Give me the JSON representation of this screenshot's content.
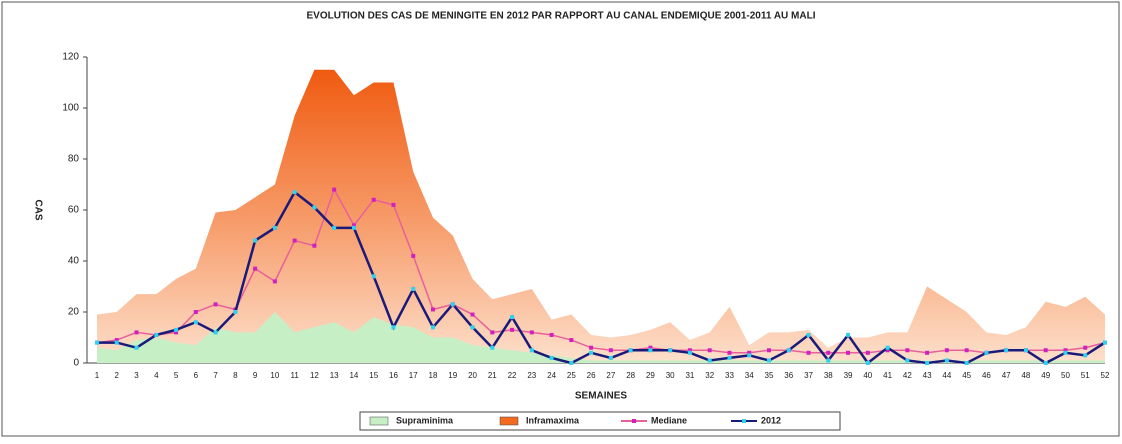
{
  "chart_data": {
    "type": "area-line",
    "title": "EVOLUTION DES CAS DE MENINGITE EN 2012 PAR RAPPORT AU CANAL ENDEMIQUE 2001-2011 AU MALI",
    "y_label": "CAS",
    "x_label": "SEMAINES",
    "categories": [
      "1",
      "2",
      "3",
      "4",
      "5",
      "6",
      "7",
      "8",
      "9",
      "10",
      "11",
      "12",
      "13",
      "14",
      "15",
      "16",
      "17",
      "18",
      "19",
      "20",
      "21",
      "22",
      "23",
      "24",
      "25",
      "26",
      "27",
      "28",
      "29",
      "30",
      "31",
      "32",
      "33",
      "34",
      "35",
      "36",
      "37",
      "38",
      "39",
      "40",
      "41",
      "42",
      "43",
      "44",
      "45",
      "46",
      "47",
      "48",
      "49",
      "50",
      "51",
      "52"
    ],
    "ylim": [
      0,
      120
    ],
    "yticks": [
      0,
      20,
      40,
      60,
      80,
      100,
      120
    ],
    "legend": "bottom",
    "series": [
      {
        "name": "Supraminima",
        "kind": "area",
        "color": "#c6efc6",
        "values": [
          6,
          5,
          9,
          10,
          8,
          7,
          14,
          12,
          12,
          20,
          12,
          14,
          16,
          12,
          18,
          15,
          14,
          10,
          10,
          7,
          6,
          5,
          4,
          3,
          2,
          1,
          1,
          1,
          1,
          1,
          1,
          1,
          1,
          1,
          1,
          1,
          1,
          1,
          1,
          1,
          1,
          1,
          1,
          1,
          1,
          1,
          1,
          1,
          1,
          1,
          1,
          1
        ]
      },
      {
        "name": "Inframaxima",
        "kind": "area",
        "color": "#f26b21",
        "values": [
          19,
          20,
          27,
          27,
          33,
          37,
          59,
          60,
          65,
          70,
          97,
          115,
          115,
          105,
          110,
          110,
          75,
          57,
          50,
          33,
          25,
          27,
          29,
          17,
          19,
          11,
          10,
          11,
          13,
          16,
          9,
          12,
          22,
          7,
          12,
          12,
          13,
          6,
          10,
          10,
          12,
          12,
          30,
          25,
          20,
          12,
          11,
          14,
          24,
          22,
          26,
          19
        ]
      },
      {
        "name": "Mediane",
        "kind": "line",
        "color": "#e8609a",
        "marker": "#d020c0",
        "values": [
          8,
          9,
          12,
          11,
          12,
          20,
          23,
          21,
          37,
          32,
          48,
          46,
          68,
          54,
          64,
          62,
          42,
          21,
          23,
          19,
          12,
          13,
          12,
          11,
          9,
          6,
          5,
          5,
          6,
          5,
          5,
          5,
          4,
          4,
          5,
          5,
          4,
          4,
          4,
          4,
          5,
          5,
          4,
          5,
          5,
          4,
          5,
          5,
          5,
          5,
          6,
          8
        ]
      },
      {
        "name": "2012",
        "kind": "line",
        "color": "#1a1a7a",
        "marker": "#30d0f0",
        "values": [
          8,
          8,
          6,
          11,
          13,
          16,
          12,
          20,
          48,
          53,
          67,
          61,
          53,
          53,
          34,
          14,
          29,
          14,
          23,
          14,
          6,
          18,
          5,
          2,
          0,
          4,
          2,
          5,
          5,
          5,
          4,
          1,
          2,
          3,
          1,
          5,
          11,
          1,
          11,
          0,
          6,
          1,
          0,
          1,
          0,
          4,
          5,
          5,
          0,
          4,
          3,
          8
        ]
      }
    ]
  }
}
